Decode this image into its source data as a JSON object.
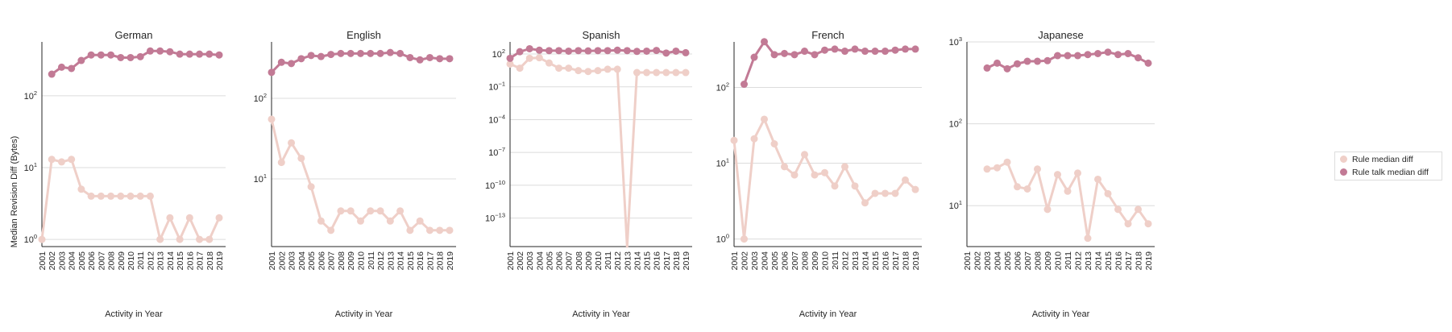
{
  "figure": {
    "ylabel": "Median Revision Diff (Bytes)",
    "xlabel": "Activity in Year",
    "legend": [
      {
        "label": "Rule median diff",
        "color": "#efcfc8"
      },
      {
        "label": "Rule talk median diff",
        "color": "#c27a95"
      }
    ]
  },
  "chart_data": [
    {
      "type": "line",
      "title": "German",
      "xlabel": "Activity in Year",
      "ylabel": "Median Revision Diff (Bytes)",
      "yscale": "log",
      "ylim_log10": [
        -0.1,
        2.75
      ],
      "grid": "horizontal",
      "yticks": [
        {
          "exp": 0,
          "label": "10",
          "sup": "0"
        },
        {
          "exp": 1,
          "label": "10",
          "sup": "1"
        },
        {
          "exp": 2,
          "label": "10",
          "sup": "2"
        }
      ],
      "x": [
        "2001",
        "2002",
        "2003",
        "2004",
        "2005",
        "2006",
        "2007",
        "2008",
        "2009",
        "2010",
        "2011",
        "2012",
        "2013",
        "2014",
        "2015",
        "2016",
        "2017",
        "2018",
        "2019"
      ],
      "series": [
        {
          "name": "Rule median diff",
          "color": "#efcfc8",
          "values": [
            1,
            13,
            12,
            13,
            5,
            4,
            4,
            4,
            4,
            4,
            4,
            4,
            1,
            2,
            1,
            2,
            1,
            1,
            2
          ]
        },
        {
          "name": "Rule talk median diff",
          "color": "#c27a95",
          "values": [
            null,
            200,
            250,
            240,
            310,
            370,
            370,
            370,
            340,
            340,
            350,
            420,
            420,
            410,
            380,
            380,
            380,
            380,
            370
          ]
        }
      ]
    },
    {
      "type": "line",
      "title": "English",
      "xlabel": "Activity in Year",
      "ylabel": "",
      "yscale": "log",
      "ylim_log10": [
        0.16,
        2.7
      ],
      "grid": "horizontal",
      "yticks": [
        {
          "exp": 1,
          "label": "10",
          "sup": "1"
        },
        {
          "exp": 2,
          "label": "10",
          "sup": "2"
        }
      ],
      "x": [
        "2001",
        "2002",
        "2003",
        "2004",
        "2005",
        "2006",
        "2007",
        "2008",
        "2009",
        "2010",
        "2011",
        "2012",
        "2013",
        "2014",
        "2015",
        "2016",
        "2017",
        "2018",
        "2019"
      ],
      "series": [
        {
          "name": "Rule median diff",
          "color": "#efcfc8",
          "values": [
            55,
            16,
            28,
            18,
            8,
            3,
            2.3,
            4,
            4,
            3,
            4,
            4,
            3,
            4,
            2.3,
            3,
            2.3,
            2.3,
            2.3
          ]
        },
        {
          "name": "Rule talk median diff",
          "color": "#c27a95",
          "values": [
            210,
            280,
            270,
            310,
            340,
            330,
            350,
            360,
            360,
            360,
            360,
            360,
            370,
            360,
            320,
            300,
            320,
            310,
            310
          ]
        }
      ]
    },
    {
      "type": "line",
      "title": "Spanish",
      "xlabel": "Activity in Year",
      "ylabel": "",
      "yscale": "log",
      "ylim_log10": [
        -15.6,
        3.1
      ],
      "grid": "horizontal",
      "yticks": [
        {
          "exp": -13,
          "label": "10",
          "sup": "−13"
        },
        {
          "exp": -10,
          "label": "10",
          "sup": "−10"
        },
        {
          "exp": -7,
          "label": "10",
          "sup": "−7"
        },
        {
          "exp": -4,
          "label": "10",
          "sup": "−4"
        },
        {
          "exp": -1,
          "label": "10",
          "sup": "−1"
        },
        {
          "exp": 2,
          "label": "10",
          "sup": "2"
        }
      ],
      "x": [
        "2001",
        "2002",
        "2003",
        "2004",
        "2005",
        "2006",
        "2007",
        "2008",
        "2009",
        "2010",
        "2011",
        "2012",
        "2013",
        "2014",
        "2015",
        "2016",
        "2017",
        "2018",
        "2019"
      ],
      "series": [
        {
          "name": "Rule median diff",
          "color": "#efcfc8",
          "values": [
            12,
            5,
            40,
            45,
            15,
            5,
            5,
            3,
            2.5,
            3,
            4,
            4,
            0,
            2,
            2,
            2,
            2,
            2,
            2
          ]
        },
        {
          "name": "Rule talk median diff",
          "color": "#c27a95",
          "values": [
            40,
            160,
            300,
            220,
            200,
            200,
            180,
            200,
            190,
            200,
            200,
            220,
            200,
            170,
            180,
            210,
            120,
            180,
            130
          ]
        }
      ]
    },
    {
      "type": "line",
      "title": "French",
      "xlabel": "Activity in Year",
      "ylabel": "",
      "yscale": "log",
      "ylim_log10": [
        -0.1,
        2.6
      ],
      "grid": "horizontal",
      "yticks": [
        {
          "exp": 0,
          "label": "10",
          "sup": "0"
        },
        {
          "exp": 1,
          "label": "10",
          "sup": "1"
        },
        {
          "exp": 2,
          "label": "10",
          "sup": "2"
        }
      ],
      "x": [
        "2001",
        "2002",
        "2003",
        "2004",
        "2005",
        "2006",
        "2007",
        "2008",
        "2009",
        "2010",
        "2011",
        "2012",
        "2013",
        "2014",
        "2015",
        "2016",
        "2017",
        "2018",
        "2019"
      ],
      "series": [
        {
          "name": "Rule median diff",
          "color": "#efcfc8",
          "values": [
            20,
            1,
            21,
            38,
            18,
            9,
            7,
            13,
            7,
            7.5,
            5,
            9,
            5,
            3,
            4,
            4,
            4,
            6,
            4.5
          ]
        },
        {
          "name": "Rule talk median diff",
          "color": "#c27a95",
          "values": [
            null,
            110,
            250,
            400,
            270,
            280,
            270,
            300,
            270,
            310,
            320,
            300,
            320,
            300,
            300,
            300,
            310,
            320,
            320
          ]
        }
      ]
    },
    {
      "type": "line",
      "title": "Japanese",
      "xlabel": "Activity in Year",
      "ylabel": "",
      "yscale": "log",
      "ylim_log10": [
        0.5,
        3.0
      ],
      "grid": "horizontal",
      "yticks": [
        {
          "exp": 1,
          "label": "10",
          "sup": "1"
        },
        {
          "exp": 2,
          "label": "10",
          "sup": "2"
        },
        {
          "exp": 3,
          "label": "10",
          "sup": "3"
        }
      ],
      "x": [
        "2001",
        "2002",
        "2003",
        "2004",
        "2005",
        "2006",
        "2007",
        "2008",
        "2009",
        "2010",
        "2011",
        "2012",
        "2013",
        "2014",
        "2015",
        "2016",
        "2017",
        "2018",
        "2019"
      ],
      "series": [
        {
          "name": "Rule median diff",
          "color": "#efcfc8",
          "values": [
            null,
            null,
            28,
            29,
            34,
            17,
            16,
            28,
            9,
            24,
            15,
            25,
            4,
            21,
            14,
            9,
            6,
            9,
            6
          ]
        },
        {
          "name": "Rule talk median diff",
          "color": "#c27a95",
          "values": [
            null,
            null,
            480,
            550,
            470,
            540,
            580,
            580,
            590,
            680,
            680,
            680,
            700,
            720,
            750,
            700,
            720,
            640,
            550
          ]
        }
      ]
    }
  ]
}
